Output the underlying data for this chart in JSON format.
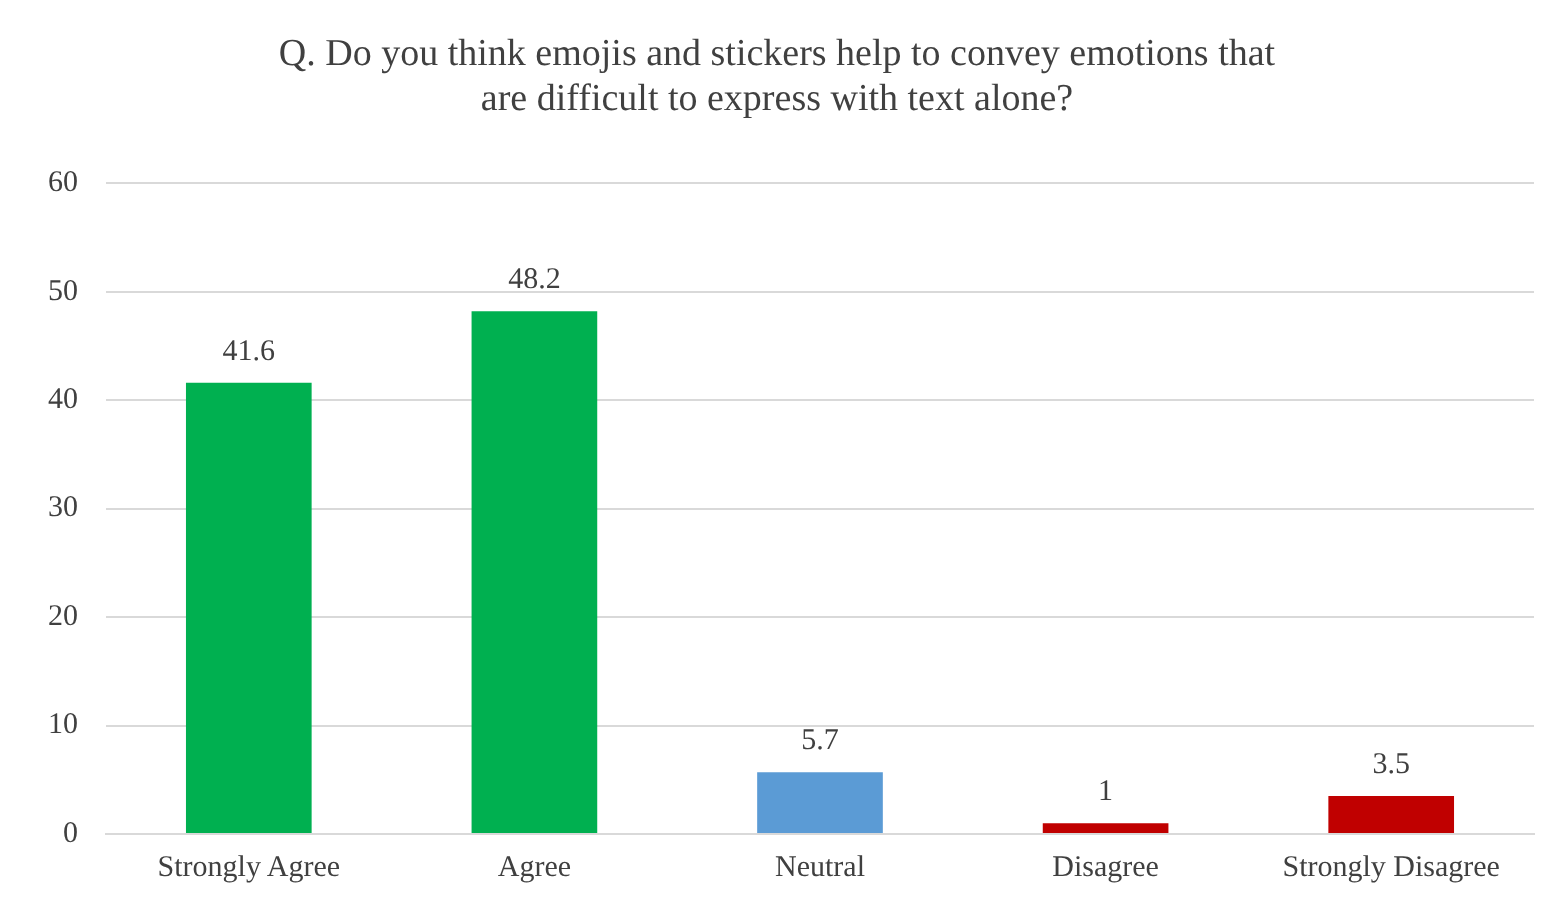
{
  "chart_data": {
    "type": "bar",
    "title": [
      "Q. Do you think emojis and stickers help to convey emotions that",
      "are difficult to express with text alone?"
    ],
    "categories": [
      "Strongly Agree",
      "Agree",
      "Neutral",
      "Disagree",
      "Strongly Disagree"
    ],
    "values": [
      41.6,
      48.2,
      5.7,
      1,
      3.5
    ],
    "colors": [
      "#00b050",
      "#00b050",
      "#5b9bd5",
      "#c00000",
      "#c00000"
    ],
    "ylim": [
      0,
      60
    ],
    "yticks": [
      0,
      10,
      20,
      30,
      40,
      50,
      60
    ],
    "grid": "y",
    "data_labels": true
  }
}
